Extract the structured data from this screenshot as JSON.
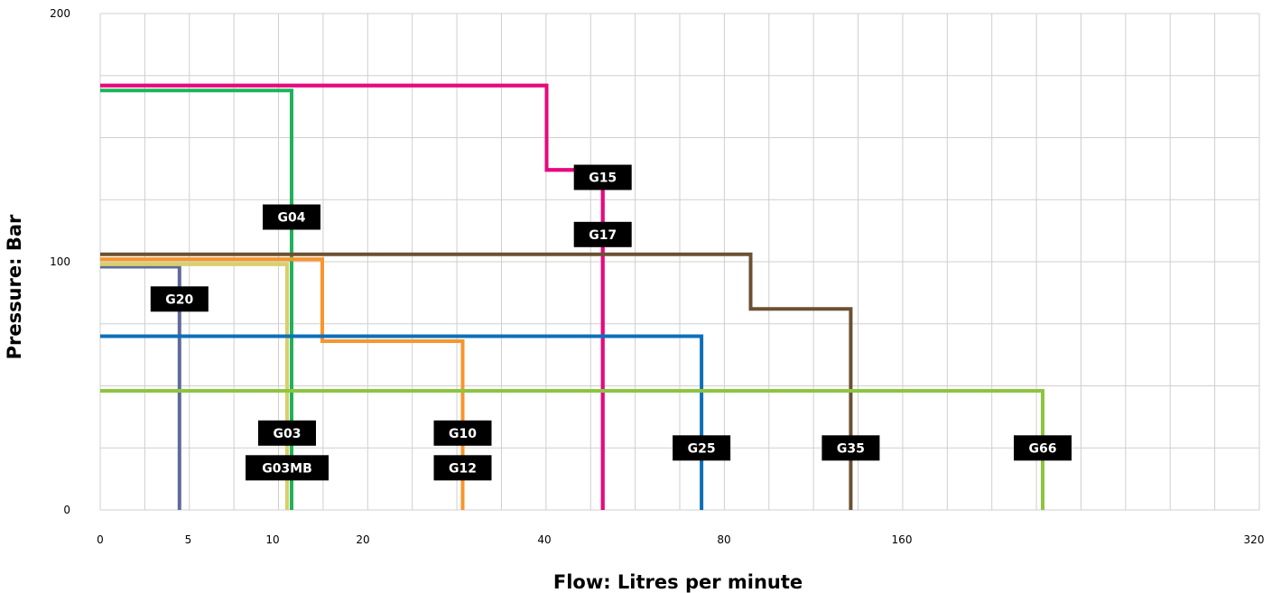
{
  "chart_data": {
    "type": "line",
    "title": "",
    "xlabel": "Flow: Litres per minute",
    "ylabel": "Pressure: Bar",
    "xscale": "log2",
    "xlim": [
      0,
      320
    ],
    "ylim": [
      0,
      200
    ],
    "x_ticks": [
      {
        "label": "0",
        "value": 0
      },
      {
        "label": "5",
        "value": 5
      },
      {
        "label": "10",
        "value": 10
      },
      {
        "label": "20",
        "value": 20
      },
      {
        "label": "40",
        "value": 40
      },
      {
        "label": "80",
        "value": 80
      },
      {
        "label": "160",
        "value": 160
      },
      {
        "label": "320",
        "value": 320
      }
    ],
    "y_ticks": [
      {
        "label": "0",
        "value": 0
      },
      {
        "label": "100",
        "value": 100
      },
      {
        "label": "200",
        "value": 200
      }
    ],
    "grid": true,
    "series": [
      {
        "name": "G20",
        "color": "#5f6b9a",
        "points": [
          [
            0,
            98
          ],
          [
            4.5,
            98
          ],
          [
            4.5,
            0
          ]
        ]
      },
      {
        "name": "G03",
        "color": "#d8cf6a",
        "points": [
          [
            0,
            99
          ],
          [
            11.6,
            99
          ],
          [
            11.6,
            0
          ]
        ]
      },
      {
        "name": "G03MB",
        "color": "#d8cf6a",
        "points": [
          [
            0,
            99
          ],
          [
            11.6,
            99
          ],
          [
            11.6,
            0
          ]
        ]
      },
      {
        "name": "G04",
        "color": "#1fb25a",
        "points": [
          [
            0,
            169
          ],
          [
            12.1,
            169
          ],
          [
            12.1,
            0
          ]
        ]
      },
      {
        "name": "G10",
        "color": "#f7962b",
        "points": [
          [
            0,
            101
          ],
          [
            15.5,
            101
          ],
          [
            15.5,
            68
          ],
          [
            31,
            68
          ],
          [
            31,
            0
          ]
        ]
      },
      {
        "name": "G12",
        "color": "#f7962b",
        "points": [
          [
            0,
            101
          ],
          [
            15.5,
            101
          ],
          [
            15.5,
            68
          ],
          [
            31,
            68
          ],
          [
            31,
            0
          ]
        ]
      },
      {
        "name": "G15",
        "color": "#e6097e",
        "points": [
          [
            0,
            171
          ],
          [
            40.5,
            171
          ],
          [
            40.5,
            137
          ],
          [
            53,
            137
          ],
          [
            53,
            0
          ]
        ]
      },
      {
        "name": "G17",
        "color": "#e6097e",
        "points": [
          [
            0,
            171
          ],
          [
            40.5,
            171
          ],
          [
            40.5,
            137
          ],
          [
            53,
            137
          ],
          [
            53,
            0
          ]
        ]
      },
      {
        "name": "G25",
        "color": "#0d6fb8",
        "points": [
          [
            0,
            70
          ],
          [
            75,
            70
          ],
          [
            75,
            0
          ]
        ]
      },
      {
        "name": "G35",
        "color": "#6b5032",
        "points": [
          [
            0,
            103
          ],
          [
            92,
            103
          ],
          [
            92,
            81
          ],
          [
            137,
            81
          ],
          [
            137,
            0
          ]
        ]
      },
      {
        "name": "G66",
        "color": "#8cc53f",
        "points": [
          [
            0,
            48
          ],
          [
            224,
            48
          ],
          [
            224,
            0
          ]
        ]
      }
    ],
    "series_labels": [
      {
        "text": "G04",
        "series": "G04",
        "y": 118
      },
      {
        "text": "G15",
        "series": "G15",
        "y": 134
      },
      {
        "text": "G17",
        "series": "G17",
        "y": 111
      },
      {
        "text": "G20",
        "series": "G20",
        "y": 85
      },
      {
        "text": "G03",
        "series": "G03",
        "y": 31
      },
      {
        "text": "G03MB",
        "series": "G03MB",
        "y": 17
      },
      {
        "text": "G10",
        "series": "G10",
        "y": 31
      },
      {
        "text": "G12",
        "series": "G12",
        "y": 17
      },
      {
        "text": "G25",
        "series": "G25",
        "y": 25
      },
      {
        "text": "G35",
        "series": "G35",
        "y": 25
      },
      {
        "text": "G66",
        "series": "G66",
        "y": 25
      }
    ]
  }
}
